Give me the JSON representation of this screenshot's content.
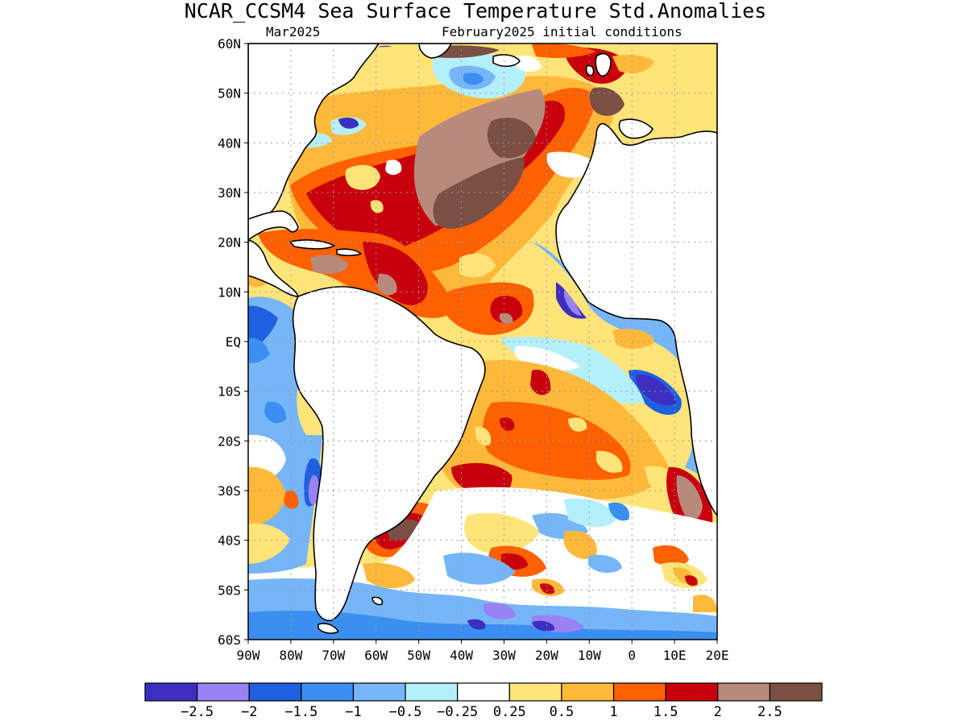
{
  "title": "NCAR_CCSM4 Sea Surface Temperature Std.Anomalies",
  "subtitle_left": "Mar2025",
  "subtitle_right": "February2025 initial conditions",
  "lat_ticks": [
    "60N",
    "50N",
    "40N",
    "30N",
    "20N",
    "10N",
    "EQ",
    "10S",
    "20S",
    "30S",
    "40S",
    "50S",
    "60S"
  ],
  "lon_ticks": [
    "90W",
    "80W",
    "70W",
    "60W",
    "50W",
    "40W",
    "30W",
    "20W",
    "10W",
    "0",
    "10E",
    "20E"
  ],
  "extent": {
    "lon_min": -90,
    "lon_max": 20,
    "lat_min": -60,
    "lat_max": 60
  },
  "colorbar": {
    "colors": [
      "#3c2fc0",
      "#9a82f5",
      "#1f60e0",
      "#3b8ff0",
      "#76b6f8",
      "#b4f0fa",
      "#ffffff",
      "#ffe479",
      "#ffb93a",
      "#ff6000",
      "#c8000e",
      "#b78a7c",
      "#7a4f44"
    ],
    "labels": [
      "−2.5",
      "−2",
      "−1.5",
      "−1",
      "−0.5",
      "−0.25",
      "0.25",
      "0.5",
      "1",
      "1.5",
      "2",
      "2.5"
    ]
  }
}
